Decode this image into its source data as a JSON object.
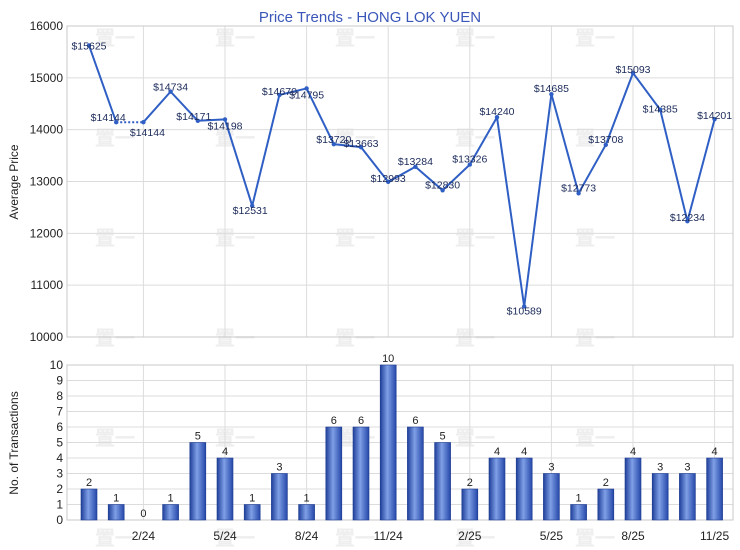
{
  "chart_data": [
    {
      "type": "line",
      "title": "Price Trends - HONG LOK YUEN",
      "ylabel": "Average Price",
      "ylim": [
        10000,
        16000
      ],
      "yticks": [
        10000,
        11000,
        12000,
        13000,
        14000,
        15000,
        16000
      ],
      "x_tick_labels": [
        "2/24",
        "5/24",
        "8/24",
        "11/24",
        "2/25",
        "5/25",
        "8/25",
        "11/25"
      ],
      "series": [
        {
          "values": [
            15625,
            14144,
            14144,
            14734,
            14171,
            14198,
            12531,
            14670,
            14795,
            13720,
            13663,
            12993,
            13284,
            12830,
            13326,
            14240,
            10589,
            14685,
            12773,
            13708,
            15093,
            14385,
            12234,
            14201
          ],
          "labels": [
            "$15625",
            "$14144",
            "$14144",
            "$14734",
            "$14171",
            "$14198",
            "$12531",
            "$14670",
            "$14795",
            "$13720",
            "$13663",
            "$12993",
            "$13284",
            "$12830",
            "$13326",
            "$14240",
            "$10589",
            "$14685",
            "$12773",
            "$13708",
            "$15093",
            "$14385",
            "$12234",
            "$14201"
          ],
          "color": "#2f5fc4"
        }
      ],
      "grid": true
    },
    {
      "type": "bar",
      "ylabel": "No. of Transactions",
      "ylim": [
        0,
        10
      ],
      "yticks": [
        0,
        1,
        2,
        3,
        4,
        5,
        6,
        7,
        8,
        9,
        10
      ],
      "x_tick_labels": [
        "2/24",
        "5/24",
        "8/24",
        "11/24",
        "2/25",
        "5/25",
        "8/25",
        "11/25"
      ],
      "values": [
        2,
        1,
        0,
        1,
        5,
        4,
        1,
        3,
        1,
        6,
        6,
        10,
        6,
        5,
        2,
        4,
        4,
        3,
        1,
        2,
        4,
        3,
        3,
        4
      ],
      "color": "#3a63c8",
      "grid": true
    }
  ]
}
